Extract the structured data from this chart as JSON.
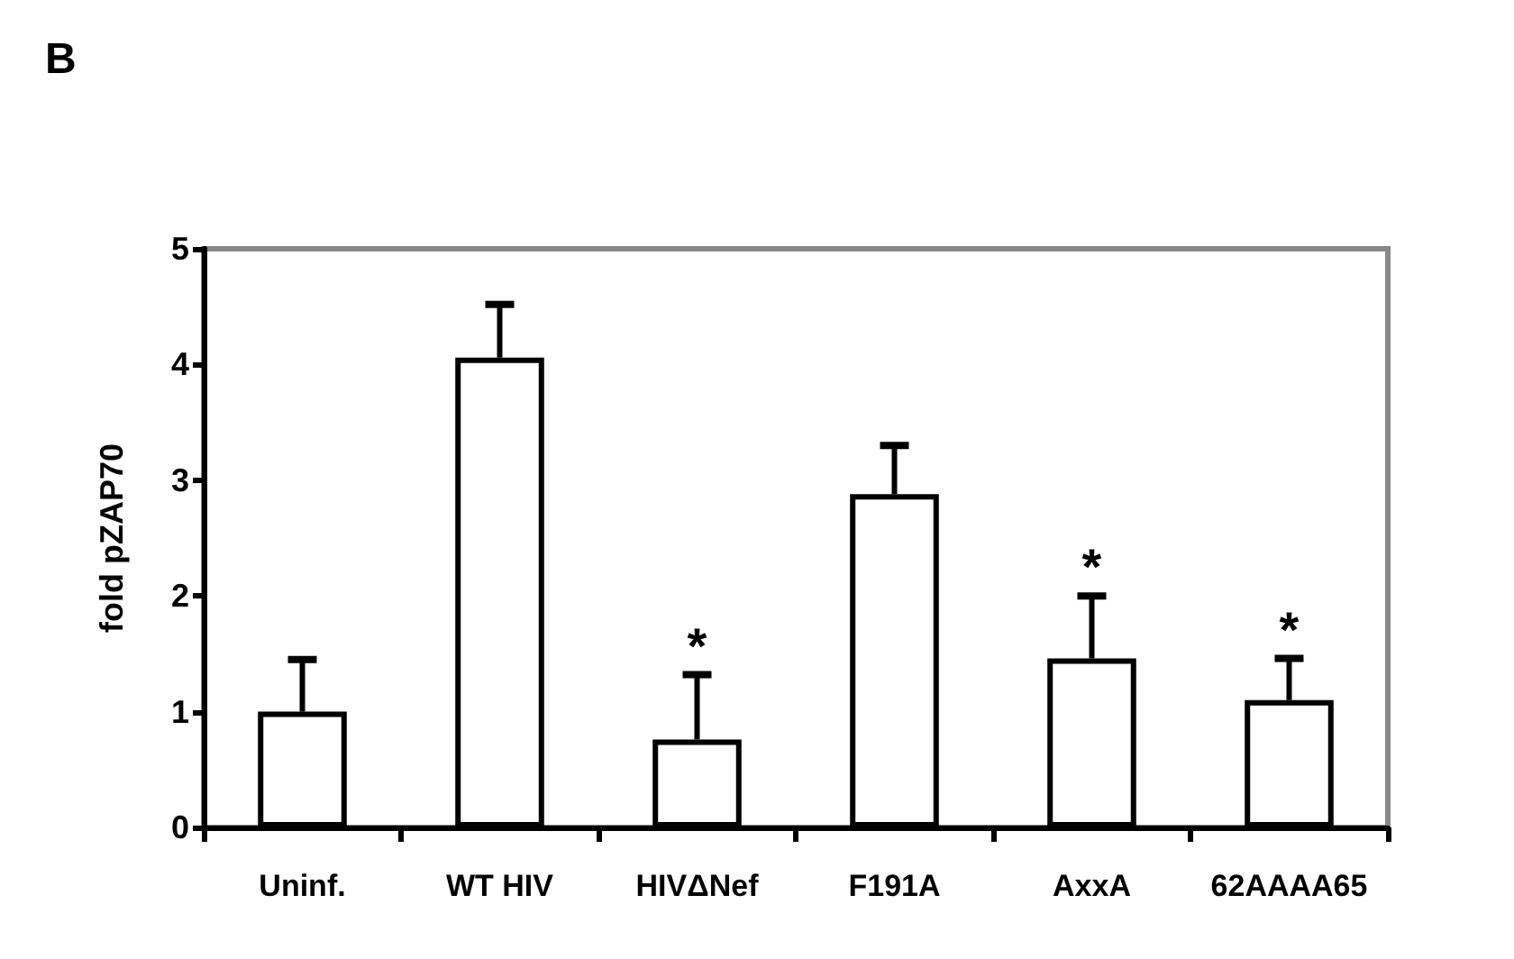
{
  "chart_data": {
    "type": "bar",
    "title": "B",
    "ylabel": "fold pZAP70",
    "categories": [
      "Uninf.",
      "WT HIV",
      "HIVΔNef",
      "F191A",
      "AxxA",
      "62AAAA65"
    ],
    "values": [
      1.0,
      4.06,
      0.76,
      2.88,
      1.46,
      1.1
    ],
    "errors": [
      [
        1.0,
        1.45
      ],
      [
        4.06,
        4.52
      ],
      [
        0.76,
        1.32
      ],
      [
        2.88,
        3.3
      ],
      [
        1.46,
        2.0
      ],
      [
        1.1,
        1.46
      ]
    ],
    "color": "#ffffff",
    "ylim": [
      0,
      5
    ],
    "yticks": [
      0,
      1,
      2,
      3,
      4,
      5
    ],
    "grid": false,
    "annotations": [
      {
        "text": "*",
        "x": "HIVΔNef",
        "y": 1.32
      },
      {
        "text": "*",
        "x": "AxxA",
        "y": 2.0
      },
      {
        "text": "*",
        "x": "62AAAA65",
        "y": 1.46
      }
    ]
  }
}
